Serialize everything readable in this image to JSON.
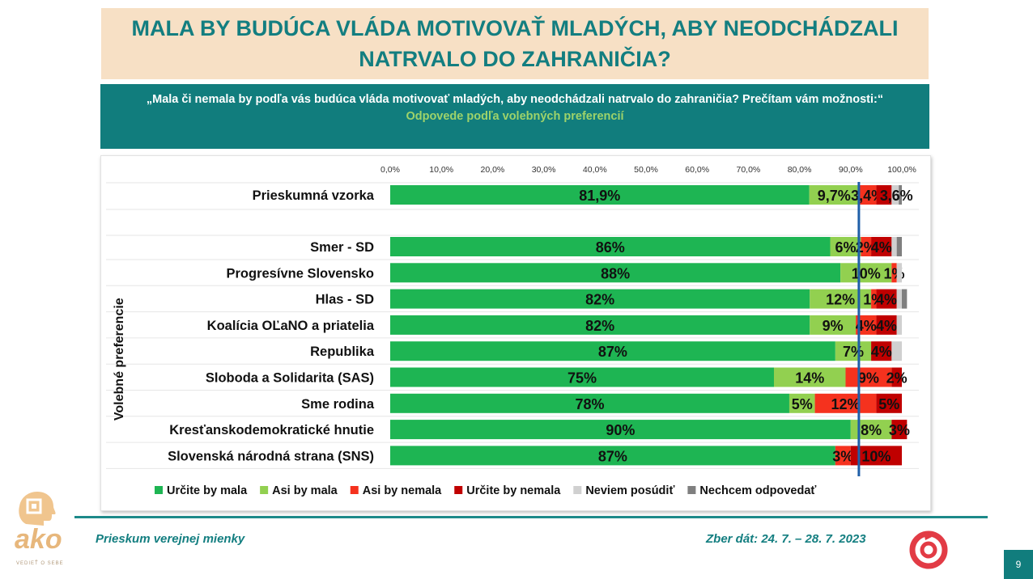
{
  "header": {
    "title": "MALA BY BUDÚCA VLÁDA MOTIVOVAŤ MLADÝCH, ABY NEODCHÁDZALI NATRVALO DO ZAHRANIČIA?",
    "question": "„Mala či nemala by podľa vás budúca vláda motivovať mladých, aby neodchádzali natrvalo do zahraničia? Prečítam vám možnosti:“",
    "subtitle": "Odpovede podľa volebných preferencií"
  },
  "chart_data": {
    "type": "bar",
    "orientation": "horizontal",
    "stacked": true,
    "x_ticks": [
      "0,0%",
      "10,0%",
      "20,0%",
      "30,0%",
      "40,0%",
      "50,0%",
      "60,0%",
      "70,0%",
      "80,0%",
      "90,0%",
      "100,0%"
    ],
    "xlim": [
      0,
      100
    ],
    "ylabel": "Volebné preferencie",
    "reference_line": 91.6,
    "legend_position": "bottom",
    "categories": [
      "Prieskumná vzorka",
      "Smer - SD",
      "Progresívne Slovensko",
      "Hlas - SD",
      "Koalícia OĽaNO a priatelia",
      "Republika",
      "Sloboda a Solidarita (SAS)",
      "Sme rodina",
      "Kresťanskodemokratické hnutie",
      "Slovenská národná strana (SNS)"
    ],
    "series": [
      {
        "name": "Určite by mala",
        "color": "#1eb553",
        "values": [
          81.9,
          86,
          88,
          82,
          82,
          87,
          75,
          78,
          90,
          87
        ],
        "labels": [
          "81,9%",
          "86%",
          "88%",
          "82%",
          "82%",
          "87%",
          "75%",
          "78%",
          "90%",
          "87%"
        ]
      },
      {
        "name": "Asi by mala",
        "color": "#92d050",
        "values": [
          9.7,
          6,
          10,
          12,
          9,
          7,
          14,
          5,
          8,
          0
        ],
        "labels": [
          "9,7%",
          "6%",
          "10%",
          "12%",
          "9%",
          "7%",
          "14%",
          "5%",
          "8%",
          ""
        ]
      },
      {
        "name": "Asi by nemala",
        "color": "#f5321e",
        "values": [
          3.4,
          2,
          1,
          1,
          4,
          0,
          9,
          12,
          0,
          3
        ],
        "labels": [
          "3,4%",
          "2%",
          "1%",
          "1%",
          "4%",
          "",
          "9%",
          "12%",
          "",
          "3%"
        ]
      },
      {
        "name": "Určite by nemala",
        "color": "#c00000",
        "values": [
          3,
          4,
          0,
          4,
          4,
          4,
          2,
          5,
          3,
          10
        ],
        "labels": [
          "3",
          "4%",
          "",
          "4%",
          "4%",
          "4%",
          "2%",
          "5%",
          "3%",
          "10%"
        ]
      },
      {
        "name": "Neviem posúdiť",
        "color": "#d0d0d0",
        "values": [
          1.4,
          1,
          1,
          1,
          1,
          2,
          0,
          0,
          0,
          0
        ],
        "labels": [
          "",
          "",
          "",
          "",
          "",
          "",
          "",
          "",
          "",
          ""
        ]
      },
      {
        "name": "Nechcem odpovedať",
        "color": "#7f7f7f",
        "values": [
          0.6,
          1,
          0,
          1,
          0,
          0,
          0,
          0,
          0,
          0
        ],
        "labels": [
          ",6%",
          "",
          "",
          "",
          "",
          "",
          "",
          "",
          "",
          ""
        ]
      }
    ]
  },
  "footer": {
    "left": "Prieskum verejnej mienky",
    "right": "Zber dát: 24. 7. – 28. 7. 2023",
    "page_number": "9",
    "logo_text": "ako",
    "logo_tagline": "VEDIEŤ O SEBE"
  },
  "colors": {
    "teal": "#137e80",
    "title_bg": "#f7e0c5",
    "ref_line": "#1f5fa8"
  }
}
